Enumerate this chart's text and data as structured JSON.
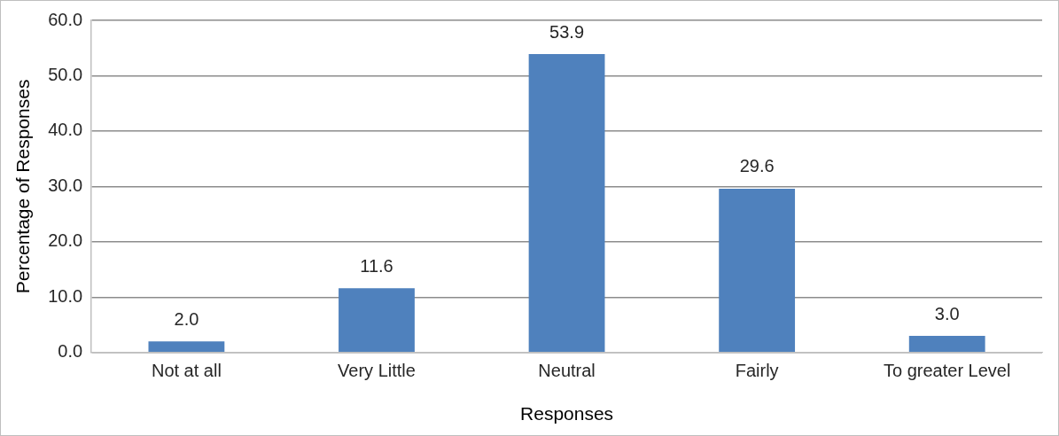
{
  "chart_data": {
    "type": "bar",
    "xlabel": "Responses",
    "ylabel": "Percentage of Responses",
    "categories": [
      "Not at all",
      "Very Little",
      "Neutral",
      "Fairly",
      "To greater Level"
    ],
    "values": [
      2.0,
      11.6,
      53.9,
      29.6,
      3.0
    ],
    "value_labels": [
      "2.0",
      "11.6",
      "53.9",
      "29.6",
      "3.0"
    ],
    "color": "#4f81bd",
    "ylim": [
      0,
      60
    ],
    "yticks": [
      {
        "value": 0,
        "label": "0.0"
      },
      {
        "value": 10,
        "label": "10.0"
      },
      {
        "value": 20,
        "label": "20.0"
      },
      {
        "value": 30,
        "label": "30.0"
      },
      {
        "value": 40,
        "label": "40.0"
      },
      {
        "value": 50,
        "label": "50.0"
      },
      {
        "value": 60,
        "label": "60.0"
      }
    ],
    "grid": "y",
    "legend": false
  }
}
